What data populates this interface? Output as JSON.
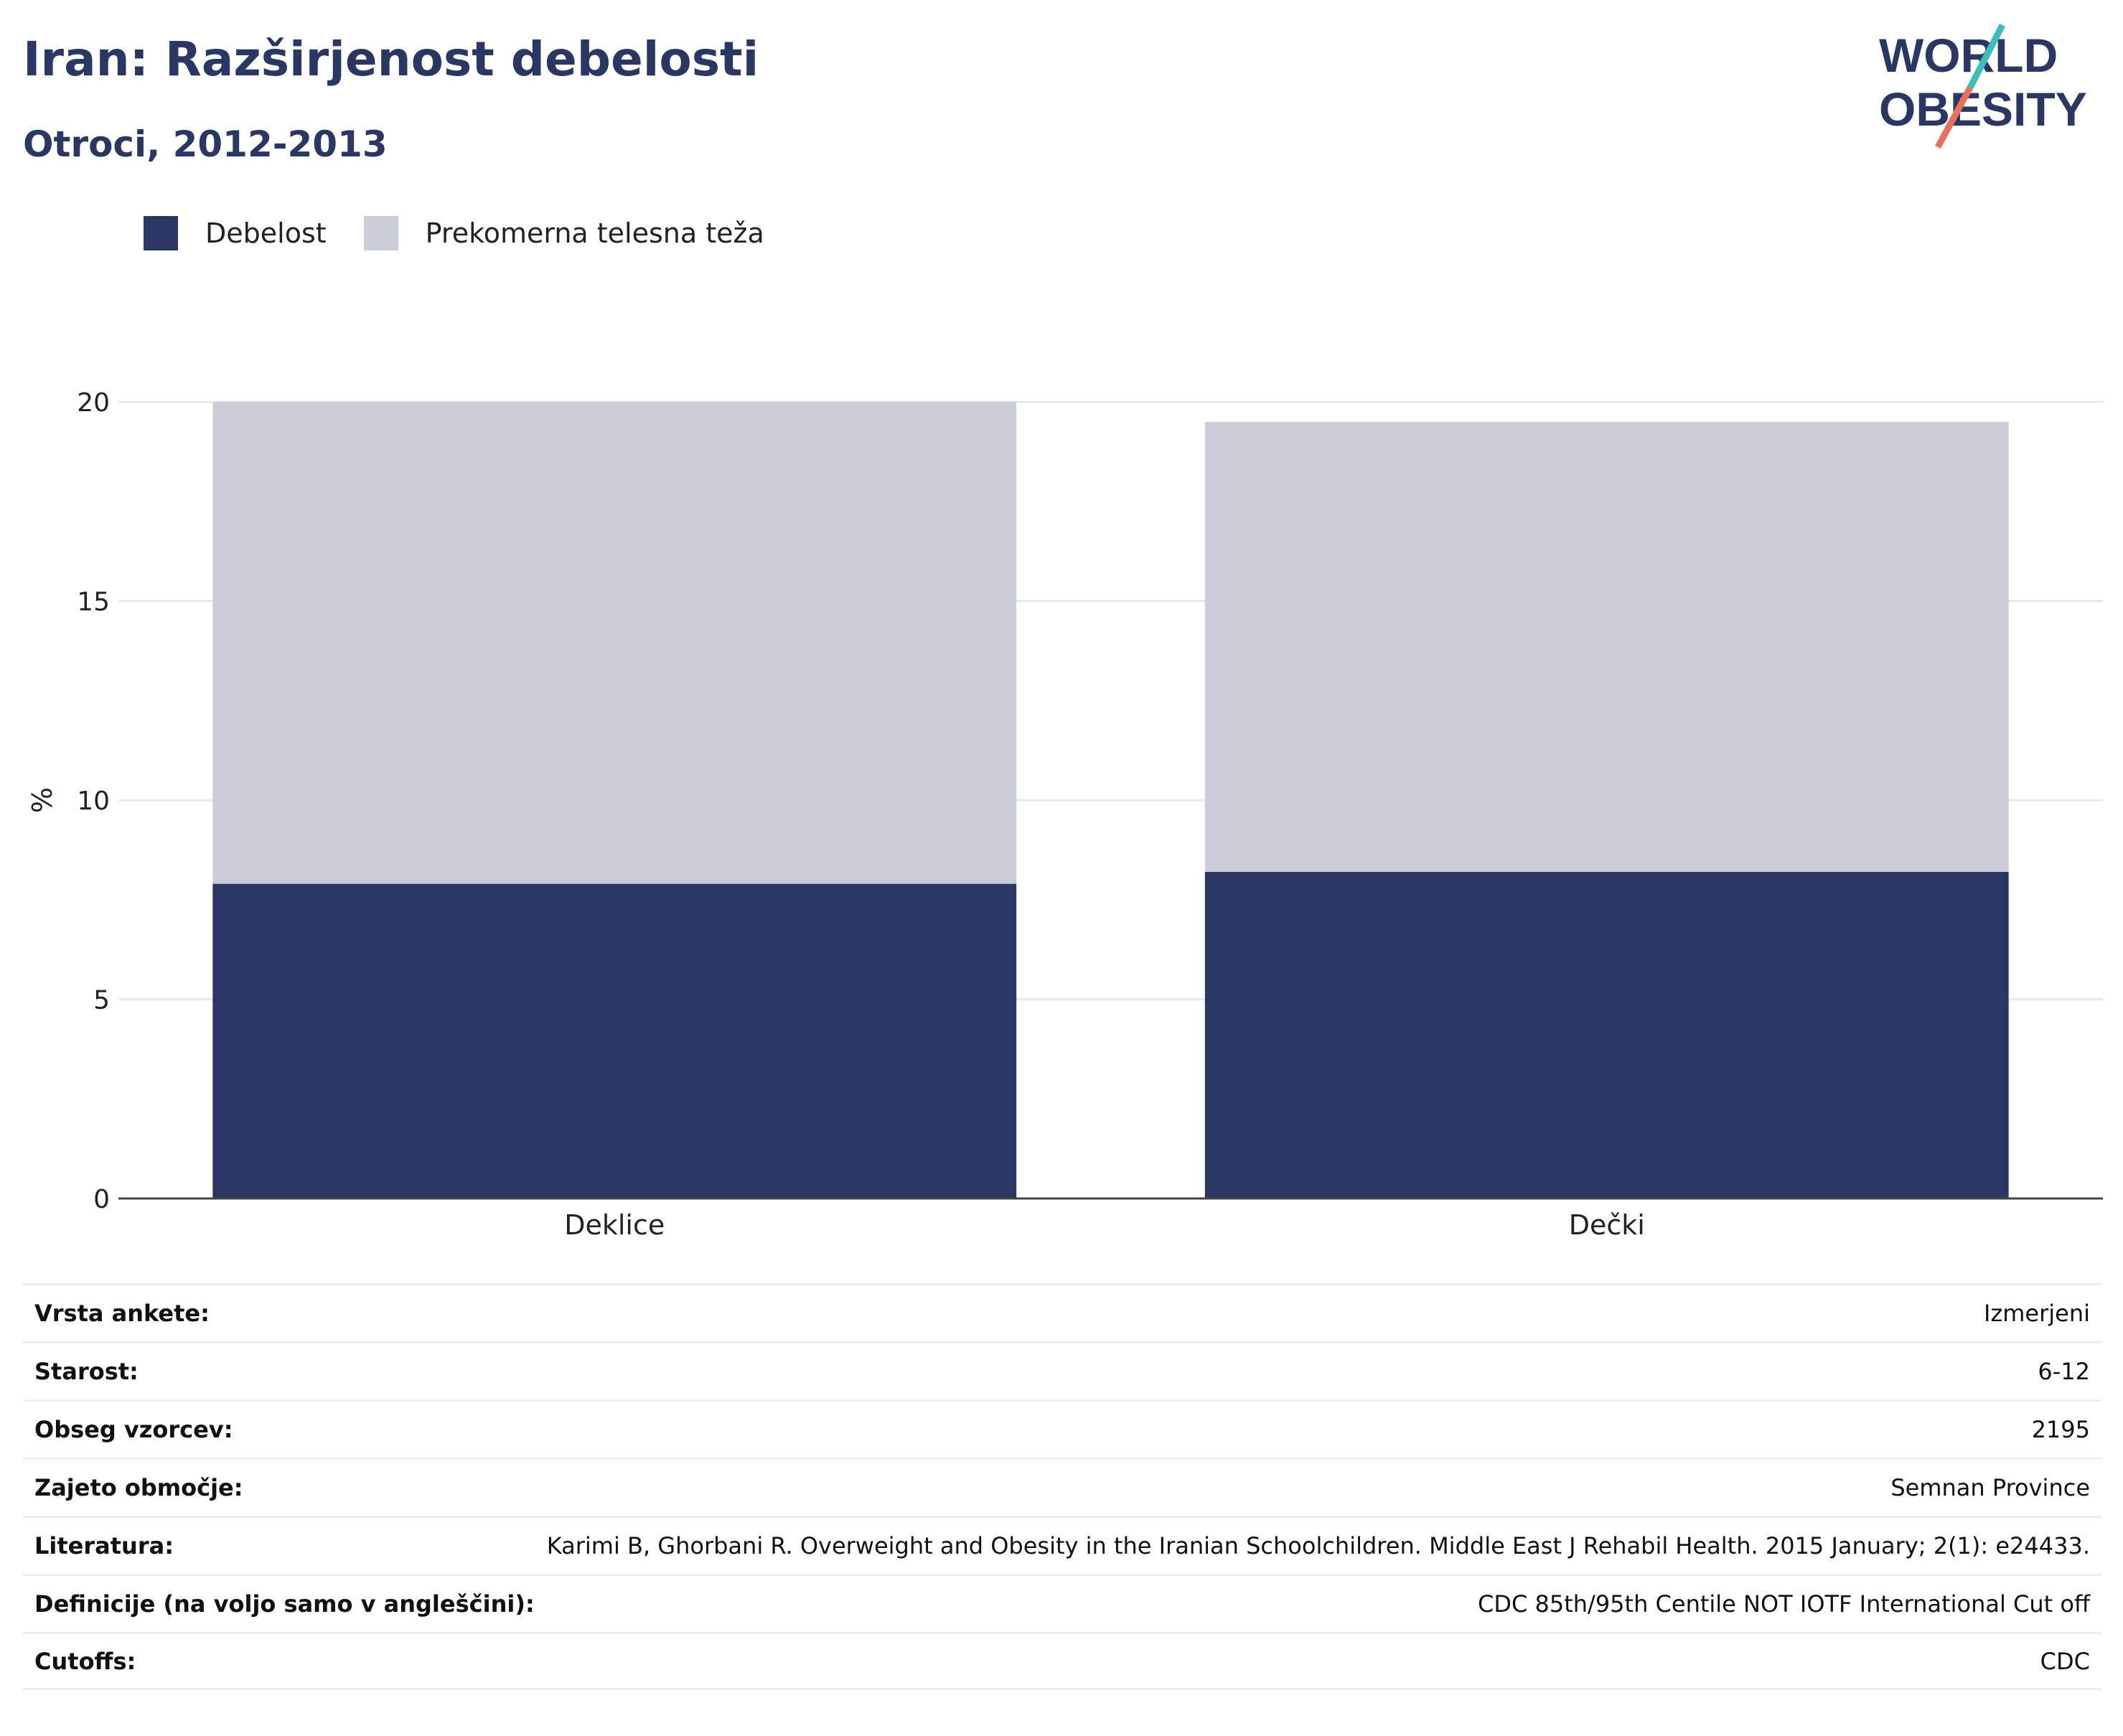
{
  "header": {
    "title": "Iran: Razširjenost debelosti",
    "subtitle": "Otroci, 2012-2013"
  },
  "logo": {
    "line1": "WORLD",
    "line2": "OBESITY"
  },
  "colors": {
    "debelost": "#2a3764",
    "prekomerna": "#cbcdd8",
    "accent_teal": "#3bbfb9",
    "accent_coral": "#e8705e"
  },
  "chart_data": {
    "type": "bar",
    "stacked": true,
    "categories": [
      "Deklice",
      "Dečki"
    ],
    "series": [
      {
        "name": "Debelost",
        "values": [
          7.9,
          8.2
        ]
      },
      {
        "name": "Prekomerna telesna teža",
        "values": [
          12.1,
          11.3
        ]
      }
    ],
    "ylabel": "%",
    "ylim": [
      0,
      20
    ],
    "yticks": [
      0,
      5,
      10,
      15,
      20
    ],
    "grid": true,
    "legend": "top-left"
  },
  "info": [
    {
      "label": "Vrsta ankete:",
      "value": "Izmerjeni"
    },
    {
      "label": "Starost:",
      "value": "6-12"
    },
    {
      "label": "Obseg vzorcev:",
      "value": "2195"
    },
    {
      "label": "Zajeto območje:",
      "value": "Semnan Province"
    },
    {
      "label": "Literatura:",
      "value": "Karimi B, Ghorbani R. Overweight and Obesity in the Iranian Schoolchildren. Middle East J Rehabil Health. 2015 January; 2(1): e24433."
    },
    {
      "label": "Definicije (na voljo samo v angleščini):",
      "value": "CDC 85th/95th Centile NOT IOTF International Cut off"
    },
    {
      "label": "Cutoffs:",
      "value": "CDC"
    }
  ]
}
